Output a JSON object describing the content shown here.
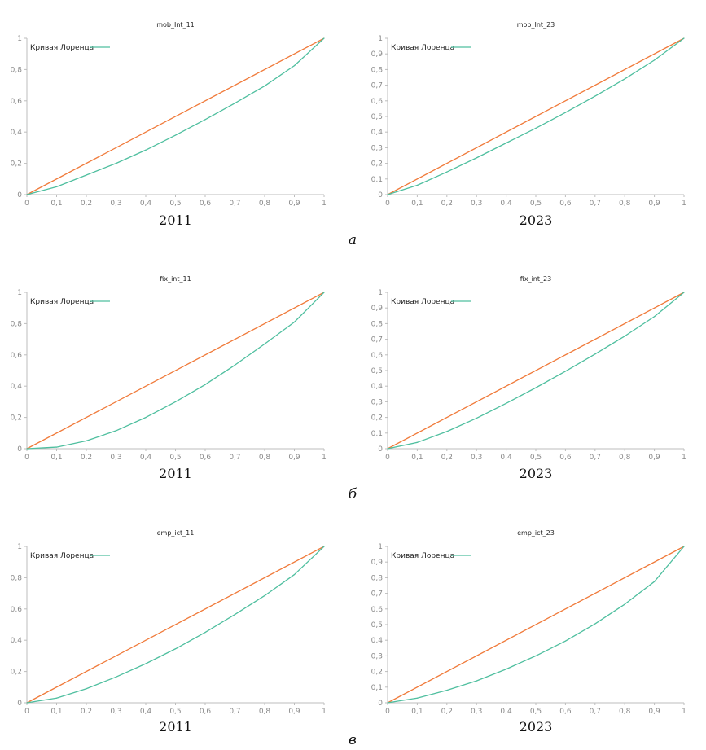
{
  "figure": {
    "row_labels": [
      "а",
      "б",
      "в"
    ]
  },
  "chart_data": [
    {
      "type": "line",
      "title": "mob_Int_11",
      "year": "2011",
      "xlim": [
        0,
        1
      ],
      "ylim": [
        0,
        1
      ],
      "xticks": [
        "0",
        "0,1",
        "0,2",
        "0,3",
        "0,4",
        "0,5",
        "0,6",
        "0,7",
        "0,8",
        "0,9",
        "1"
      ],
      "yticks": [
        "0",
        "0,2",
        "0,4",
        "0,6",
        "0,8",
        "1"
      ],
      "ytick_values": [
        0,
        0.2,
        0.4,
        0.6,
        0.8,
        1
      ],
      "legend": {
        "label": "Кривая Лоренца",
        "position": "top-left"
      },
      "colors": {
        "lorenz": "#4fbf9f",
        "equality": "#f07a3a"
      },
      "series": [
        {
          "name": "Кривая Лоренца",
          "x": [
            0,
            0.1,
            0.2,
            0.3,
            0.4,
            0.5,
            0.6,
            0.7,
            0.8,
            0.9,
            1
          ],
          "y": [
            0,
            0.05,
            0.125,
            0.2,
            0.285,
            0.38,
            0.48,
            0.585,
            0.695,
            0.825,
            1
          ]
        },
        {
          "x": [
            0,
            1
          ],
          "y": [
            0,
            1
          ]
        }
      ]
    },
    {
      "type": "line",
      "title": "mob_Int_23",
      "year": "2023",
      "xlim": [
        0,
        1
      ],
      "ylim": [
        0,
        1
      ],
      "xticks": [
        "0",
        "0,1",
        "0,2",
        "0,3",
        "0,4",
        "0,5",
        "0,6",
        "0,7",
        "0,8",
        "0,9",
        "1"
      ],
      "yticks": [
        "0",
        "0,1",
        "0,2",
        "0,3",
        "0,4",
        "0,5",
        "0,6",
        "0,7",
        "0,8",
        "0,9",
        "1"
      ],
      "ytick_values": [
        0,
        0.1,
        0.2,
        0.3,
        0.4,
        0.5,
        0.6,
        0.7,
        0.8,
        0.9,
        1
      ],
      "legend": {
        "label": "Кривая Лоренца",
        "position": "top-left"
      },
      "colors": {
        "lorenz": "#4fbf9f",
        "equality": "#f07a3a"
      },
      "series": [
        {
          "name": "Кривая Лоренца",
          "x": [
            0,
            0.1,
            0.2,
            0.3,
            0.4,
            0.5,
            0.6,
            0.7,
            0.8,
            0.9,
            1
          ],
          "y": [
            0,
            0.06,
            0.145,
            0.235,
            0.33,
            0.425,
            0.525,
            0.63,
            0.74,
            0.86,
            1
          ]
        },
        {
          "x": [
            0,
            1
          ],
          "y": [
            0,
            1
          ]
        }
      ]
    },
    {
      "type": "line",
      "title": "fix_int_11",
      "year": "2011",
      "xlim": [
        0,
        1
      ],
      "ylim": [
        0,
        1
      ],
      "xticks": [
        "0",
        "0,1",
        "0,2",
        "0,3",
        "0,4",
        "0,5",
        "0,6",
        "0,7",
        "0,8",
        "0,9",
        "1"
      ],
      "yticks": [
        "0",
        "0,2",
        "0,4",
        "0,6",
        "0,8",
        "1"
      ],
      "ytick_values": [
        0,
        0.2,
        0.4,
        0.6,
        0.8,
        1
      ],
      "legend": {
        "label": "Кривая Лоренца",
        "position": "top-left"
      },
      "colors": {
        "lorenz": "#4fbf9f",
        "equality": "#f07a3a"
      },
      "series": [
        {
          "name": "Кривая Лоренца",
          "x": [
            0,
            0.1,
            0.2,
            0.3,
            0.4,
            0.5,
            0.6,
            0.7,
            0.8,
            0.9,
            1
          ],
          "y": [
            0,
            0.01,
            0.05,
            0.115,
            0.2,
            0.3,
            0.41,
            0.535,
            0.67,
            0.81,
            1
          ]
        },
        {
          "x": [
            0,
            1
          ],
          "y": [
            0,
            1
          ]
        }
      ]
    },
    {
      "type": "line",
      "title": "fix_int_23",
      "year": "2023",
      "xlim": [
        0,
        1
      ],
      "ylim": [
        0,
        1
      ],
      "xticks": [
        "0",
        "0,1",
        "0,2",
        "0,3",
        "0,4",
        "0,5",
        "0,6",
        "0,7",
        "0,8",
        "0,9",
        "1"
      ],
      "yticks": [
        "0",
        "0,1",
        "0,2",
        "0,3",
        "0,4",
        "0,5",
        "0,6",
        "0,7",
        "0,8",
        "0,9",
        "1"
      ],
      "ytick_values": [
        0,
        0.1,
        0.2,
        0.3,
        0.4,
        0.5,
        0.6,
        0.7,
        0.8,
        0.9,
        1
      ],
      "legend": {
        "label": "Кривая Лоренца",
        "position": "top-left"
      },
      "colors": {
        "lorenz": "#4fbf9f",
        "equality": "#f07a3a"
      },
      "series": [
        {
          "name": "Кривая Лоренца",
          "x": [
            0,
            0.1,
            0.2,
            0.3,
            0.4,
            0.5,
            0.6,
            0.7,
            0.8,
            0.9,
            1
          ],
          "y": [
            0,
            0.04,
            0.11,
            0.195,
            0.29,
            0.39,
            0.495,
            0.605,
            0.72,
            0.845,
            1
          ]
        },
        {
          "x": [
            0,
            1
          ],
          "y": [
            0,
            1
          ]
        }
      ]
    },
    {
      "type": "line",
      "title": "emp_ict_11",
      "year": "2011",
      "xlim": [
        0,
        1
      ],
      "ylim": [
        0,
        1
      ],
      "xticks": [
        "0",
        "0,1",
        "0,2",
        "0,3",
        "0,4",
        "0,5",
        "0,6",
        "0,7",
        "0,8",
        "0,9",
        "1"
      ],
      "yticks": [
        "0",
        "0,2",
        "0,4",
        "0,6",
        "0,8",
        "1"
      ],
      "ytick_values": [
        0,
        0.2,
        0.4,
        0.6,
        0.8,
        1
      ],
      "legend": {
        "label": "Кривая Лоренца",
        "position": "top-left"
      },
      "colors": {
        "lorenz": "#4fbf9f",
        "equality": "#f07a3a"
      },
      "series": [
        {
          "name": "Кривая Лоренца",
          "x": [
            0,
            0.1,
            0.2,
            0.3,
            0.4,
            0.5,
            0.6,
            0.7,
            0.8,
            0.9,
            1
          ],
          "y": [
            0,
            0.03,
            0.09,
            0.165,
            0.25,
            0.345,
            0.45,
            0.565,
            0.685,
            0.82,
            1
          ]
        },
        {
          "x": [
            0,
            1
          ],
          "y": [
            0,
            1
          ]
        }
      ]
    },
    {
      "type": "line",
      "title": "emp_ict_23",
      "year": "2023",
      "xlim": [
        0,
        1
      ],
      "ylim": [
        0,
        1
      ],
      "xticks": [
        "0",
        "0,1",
        "0,2",
        "0,3",
        "0,4",
        "0,5",
        "0,6",
        "0,7",
        "0,8",
        "0,9",
        "1"
      ],
      "yticks": [
        "0",
        "0,1",
        "0,2",
        "0,3",
        "0,4",
        "0,5",
        "0,6",
        "0,7",
        "0,8",
        "0,9",
        "1"
      ],
      "ytick_values": [
        0,
        0.1,
        0.2,
        0.3,
        0.4,
        0.5,
        0.6,
        0.7,
        0.8,
        0.9,
        1
      ],
      "legend": {
        "label": "Кривая Лоренца",
        "position": "top-left"
      },
      "colors": {
        "lorenz": "#4fbf9f",
        "equality": "#f07a3a"
      },
      "series": [
        {
          "name": "Кривая Лоренца",
          "x": [
            0,
            0.1,
            0.2,
            0.3,
            0.4,
            0.5,
            0.6,
            0.7,
            0.8,
            0.9,
            1
          ],
          "y": [
            0,
            0.03,
            0.08,
            0.14,
            0.215,
            0.3,
            0.395,
            0.505,
            0.63,
            0.775,
            1
          ]
        },
        {
          "x": [
            0,
            1
          ],
          "y": [
            0,
            1
          ]
        }
      ]
    }
  ]
}
